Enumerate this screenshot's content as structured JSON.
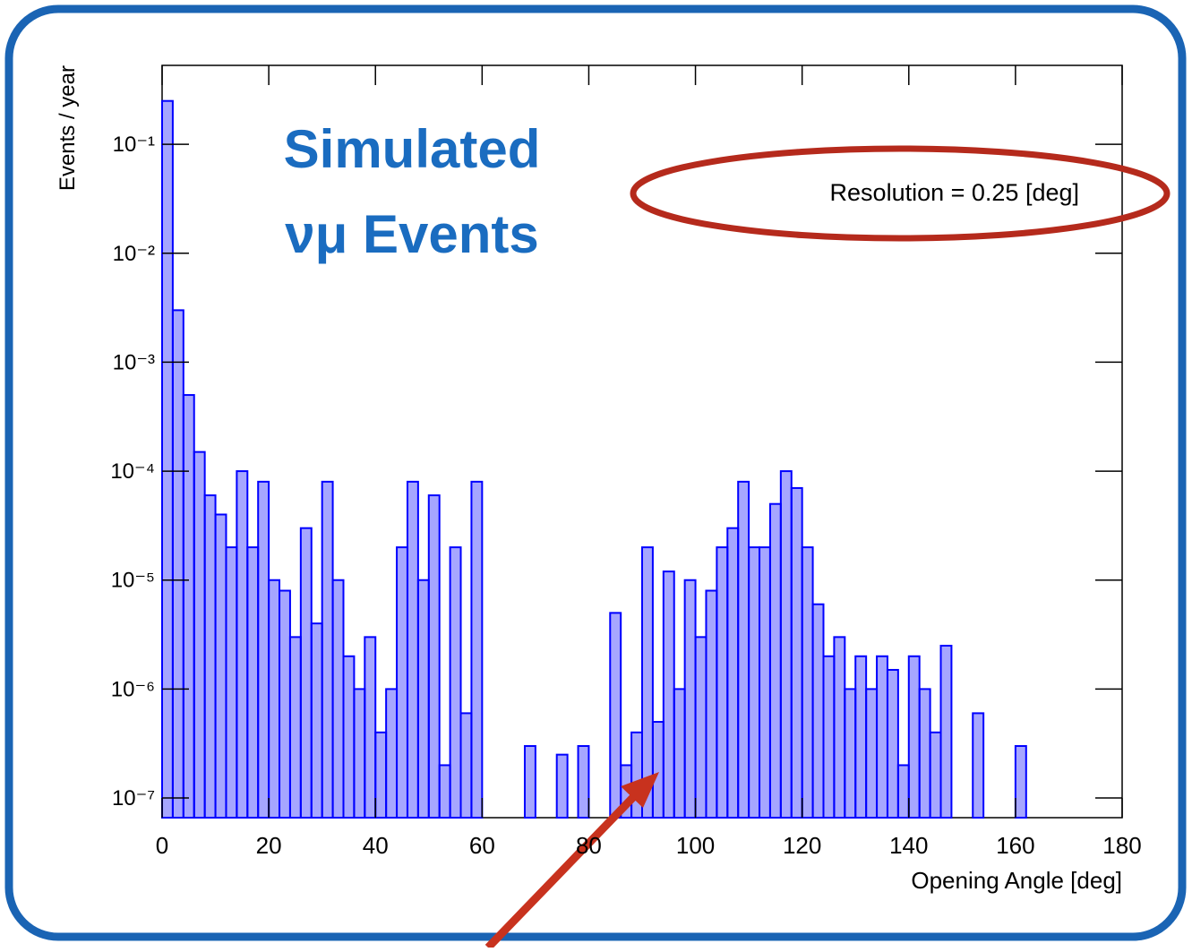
{
  "chart_data": {
    "type": "histogram",
    "annotations": [
      "Simulated",
      "νμ Events",
      "Resolution = 0.25 [deg]"
    ],
    "x_label": "Opening Angle [deg]",
    "y_label": "Events / year",
    "color": "#0000ff",
    "log_y": true,
    "bins": [
      0,
      2,
      4,
      6,
      8,
      10,
      12,
      14,
      16,
      18,
      20,
      22,
      24,
      26,
      28,
      30,
      32,
      34,
      36,
      38,
      40,
      42,
      44,
      46,
      48,
      50,
      52,
      54,
      56,
      58,
      60,
      62,
      64,
      66,
      68,
      70,
      72,
      74,
      76,
      78,
      80,
      82,
      84,
      86,
      88,
      90,
      92,
      94,
      96,
      98,
      100,
      102,
      104,
      106,
      108,
      110,
      112,
      114,
      116,
      118,
      120,
      122,
      124,
      126,
      128,
      130,
      132,
      134,
      136,
      138,
      140,
      142,
      144,
      146,
      148,
      150,
      152,
      154,
      156,
      158,
      160,
      162,
      164,
      166,
      168,
      170,
      172,
      174,
      176,
      178,
      180
    ],
    "values": [
      0.25,
      0.003,
      0.0005,
      0.00015,
      6e-05,
      4e-05,
      2e-05,
      0.0001,
      2e-05,
      8e-05,
      1e-05,
      8e-06,
      3e-06,
      3e-05,
      4e-06,
      8e-05,
      1e-05,
      2e-06,
      1e-06,
      3e-06,
      4e-07,
      1e-06,
      2e-05,
      8e-05,
      1e-05,
      6e-05,
      2e-07,
      2e-05,
      6e-07,
      8e-05,
      0,
      0,
      0,
      0,
      3e-07,
      0,
      0,
      2.5e-07,
      0,
      3e-07,
      0,
      0,
      5e-06,
      2e-07,
      4e-07,
      2e-05,
      5e-07,
      1.2e-05,
      1e-06,
      1e-05,
      3e-06,
      8e-06,
      2e-05,
      3e-05,
      8e-05,
      2e-05,
      2e-05,
      5e-05,
      0.0001,
      7e-05,
      2e-05,
      6e-06,
      2e-06,
      3e-06,
      1e-06,
      2e-06,
      1e-06,
      2e-06,
      1.5e-06,
      2e-07,
      2e-06,
      1e-06,
      4e-07,
      2.5e-06,
      0,
      0,
      6e-07,
      0,
      0,
      0,
      3e-07,
      0,
      0,
      0,
      0,
      0,
      0,
      0,
      0,
      0
    ],
    "xlim": [
      0,
      180
    ],
    "xticks": [
      0,
      20,
      40,
      60,
      80,
      100,
      120,
      140,
      160,
      180
    ],
    "ylim": [
      6.6e-08,
      0.53
    ],
    "yticks": [
      {
        "value": 1e-07,
        "label": "10⁻⁷"
      },
      {
        "value": 1e-06,
        "label": "10⁻⁶"
      },
      {
        "value": 1e-05,
        "label": "10⁻⁵"
      },
      {
        "value": 0.0001,
        "label": "10⁻⁴"
      },
      {
        "value": 0.001,
        "label": "10⁻³"
      },
      {
        "value": 0.01,
        "label": "10⁻²"
      },
      {
        "value": 0.1,
        "label": "10⁻¹"
      }
    ]
  }
}
